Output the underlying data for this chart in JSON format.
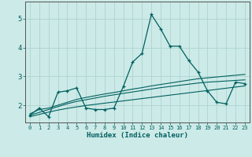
{
  "xlabel": "Humidex (Indice chaleur)",
  "background_color": "#cceae7",
  "grid_color": "#aed4d0",
  "line_color": "#006060",
  "xlim": [
    -0.5,
    23.5
  ],
  "ylim": [
    1.4,
    5.6
  ],
  "yticks": [
    2,
    3,
    4,
    5
  ],
  "xticks": [
    0,
    1,
    2,
    3,
    4,
    5,
    6,
    7,
    8,
    9,
    10,
    11,
    12,
    13,
    14,
    15,
    16,
    17,
    18,
    19,
    20,
    21,
    22,
    23
  ],
  "series": [
    [
      1.65,
      1.9,
      1.6,
      2.45,
      2.5,
      2.6,
      1.9,
      1.85,
      1.85,
      1.9,
      2.65,
      3.5,
      3.8,
      5.15,
      4.65,
      4.05,
      4.05,
      3.55,
      3.15,
      2.5,
      2.1,
      2.05,
      2.8,
      2.75
    ],
    [
      1.7,
      1.85,
      1.9,
      2.0,
      2.1,
      2.2,
      2.27,
      2.33,
      2.39,
      2.44,
      2.5,
      2.56,
      2.61,
      2.67,
      2.72,
      2.77,
      2.82,
      2.87,
      2.92,
      2.95,
      2.98,
      3.01,
      3.04,
      3.07
    ],
    [
      1.65,
      1.75,
      1.85,
      1.95,
      2.05,
      2.13,
      2.19,
      2.25,
      2.31,
      2.36,
      2.41,
      2.46,
      2.51,
      2.56,
      2.61,
      2.65,
      2.69,
      2.73,
      2.77,
      2.8,
      2.82,
      2.84,
      2.86,
      2.88
    ],
    [
      1.6,
      1.68,
      1.76,
      1.83,
      1.89,
      1.94,
      1.99,
      2.03,
      2.07,
      2.11,
      2.15,
      2.19,
      2.23,
      2.27,
      2.31,
      2.35,
      2.39,
      2.43,
      2.47,
      2.51,
      2.55,
      2.59,
      2.63,
      2.67
    ]
  ]
}
